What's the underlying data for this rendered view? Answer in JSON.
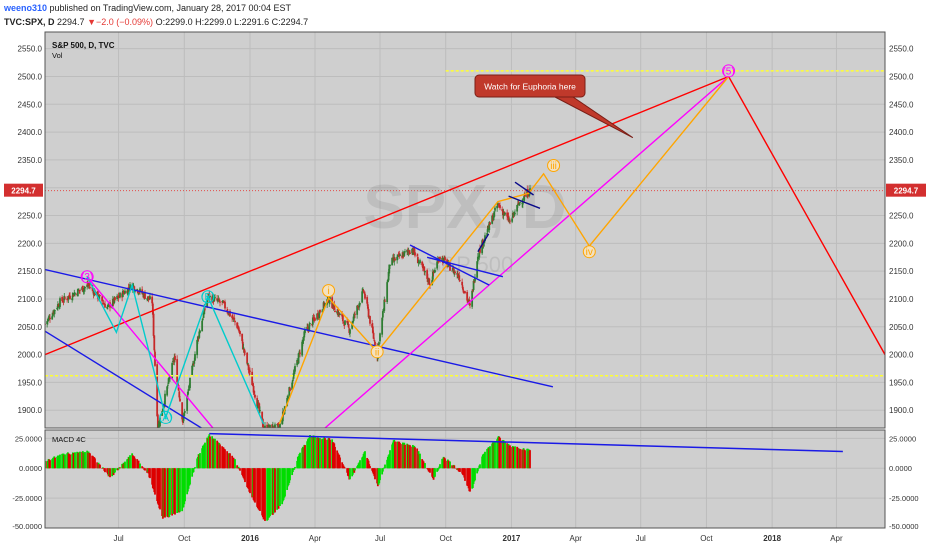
{
  "header": {
    "author": "weeno310",
    "published": " published on TradingView.com, January 28, 2017 00:04 EST",
    "symbol": "TVC:SPX, D",
    "last": "2294.7",
    "arrow": "▼",
    "change": "−2.0 (−0.09%)",
    "ohlc": "O:2299.0 H:2299.0 L:2291.6 C:2294.7"
  },
  "colors": {
    "background": "#ffffff",
    "pane": "#cfcfcf",
    "up": "#2e7d32",
    "down": "#c62828",
    "macd_pos": "#00dd00",
    "macd_neg": "#dd0000",
    "trend_red": "#ff0000",
    "trend_blue": "#1a1ae6",
    "magenta": "#ff00ff",
    "orange": "#ffa500",
    "cyan": "#00cccc",
    "yellow_dash": "#ffff33"
  },
  "chart_data": {
    "type": "candlestick",
    "title": "S&P 500, D, TVC",
    "subtitle": "Vol",
    "watermark": "SPX, D",
    "watermark_sub": "S&P 500",
    "y_axis": {
      "ylim": [
        1868,
        2580
      ],
      "ticks": [
        "2550.0",
        "2500.0",
        "2450.0",
        "2400.0",
        "2350.0",
        "2300.0",
        "2250.0",
        "2200.0",
        "2150.0",
        "2100.0",
        "2050.0",
        "2000.0",
        "1950.0",
        "1900.0"
      ],
      "grid": true
    },
    "x_axis": {
      "tick_labels": [
        "Jul",
        "Oct",
        "2016",
        "Apr",
        "Jul",
        "Oct",
        "2017",
        "Apr",
        "Jul",
        "Oct",
        "2018",
        "Apr"
      ],
      "tick_dates": [
        "2015-07-01",
        "2015-10-01",
        "2016-01-01",
        "2016-04-01",
        "2016-07-01",
        "2016-10-01",
        "2017-01-01",
        "2017-04-01",
        "2017-07-01",
        "2017-10-01",
        "2018-01-01",
        "2018-04-01"
      ],
      "range": [
        "2015-03-20",
        "2018-06-08"
      ]
    },
    "last_price_label": "2294.7",
    "last_price": 2294.7,
    "price_anchors": [
      [
        "2015-03-20",
        2055
      ],
      [
        "2015-04-10",
        2095
      ],
      [
        "2015-05-20",
        2125
      ],
      [
        "2015-06-15",
        2085
      ],
      [
        "2015-07-20",
        2125
      ],
      [
        "2015-08-17",
        2095
      ],
      [
        "2015-08-25",
        1868
      ],
      [
        "2015-09-17",
        1995
      ],
      [
        "2015-09-29",
        1880
      ],
      [
        "2015-10-20",
        2030
      ],
      [
        "2015-11-03",
        2105
      ],
      [
        "2015-11-25",
        2090
      ],
      [
        "2015-12-15",
        2050
      ],
      [
        "2016-01-20",
        1868
      ],
      [
        "2016-02-11",
        1868
      ],
      [
        "2016-03-18",
        2040
      ],
      [
        "2016-04-20",
        2100
      ],
      [
        "2016-05-19",
        2045
      ],
      [
        "2016-06-08",
        2115
      ],
      [
        "2016-06-27",
        2000
      ],
      [
        "2016-07-15",
        2165
      ],
      [
        "2016-08-15",
        2190
      ],
      [
        "2016-09-09",
        2128
      ],
      [
        "2016-09-22",
        2177
      ],
      [
        "2016-10-20",
        2140
      ],
      [
        "2016-11-04",
        2085
      ],
      [
        "2016-11-15",
        2180
      ],
      [
        "2016-12-13",
        2270
      ],
      [
        "2016-12-30",
        2238
      ],
      [
        "2017-01-13",
        2275
      ],
      [
        "2017-01-27",
        2294.7
      ]
    ],
    "macd": {
      "label": "MACD 4C",
      "ylim": [
        -50,
        32
      ],
      "ticks": [
        "25.0000",
        "0.0000",
        "-25.0000",
        "-50.0000"
      ],
      "anchors": [
        [
          "2015-03-20",
          6
        ],
        [
          "2015-04-15",
          12
        ],
        [
          "2015-05-20",
          14
        ],
        [
          "2015-06-20",
          -8
        ],
        [
          "2015-07-20",
          12
        ],
        [
          "2015-08-12",
          -5
        ],
        [
          "2015-09-01",
          -42
        ],
        [
          "2015-09-28",
          -36
        ],
        [
          "2015-10-20",
          10
        ],
        [
          "2015-11-05",
          28
        ],
        [
          "2015-11-20",
          20
        ],
        [
          "2015-12-10",
          8
        ],
        [
          "2016-01-01",
          -20
        ],
        [
          "2016-01-22",
          -45
        ],
        [
          "2016-02-15",
          -30
        ],
        [
          "2016-03-10",
          12
        ],
        [
          "2016-03-25",
          27
        ],
        [
          "2016-04-25",
          24
        ],
        [
          "2016-05-20",
          -10
        ],
        [
          "2016-06-10",
          14
        ],
        [
          "2016-06-28",
          -15
        ],
        [
          "2016-07-20",
          23
        ],
        [
          "2016-08-20",
          18
        ],
        [
          "2016-09-14",
          -10
        ],
        [
          "2016-09-28",
          10
        ],
        [
          "2016-10-25",
          -5
        ],
        [
          "2016-11-05",
          -22
        ],
        [
          "2016-11-22",
          12
        ],
        [
          "2016-12-14",
          26
        ],
        [
          "2016-12-30",
          19
        ],
        [
          "2017-01-27",
          15
        ]
      ],
      "trendline": [
        [
          "2015-11-05",
          29
        ],
        [
          "2018-04-10",
          14
        ]
      ]
    },
    "annotations": {
      "callout": "Watch for Euphoria here",
      "wave_labels": [
        {
          "text": "(3)",
          "date": "2015-05-18",
          "price": 2140,
          "color": "magenta"
        },
        {
          "text": "(A)",
          "date": "2015-09-05",
          "price": 1887,
          "color": "cyan"
        },
        {
          "text": "(B)",
          "date": "2015-11-03",
          "price": 2104,
          "color": "cyan"
        },
        {
          "text": "i",
          "date": "2016-04-20",
          "price": 2115,
          "color": "orange"
        },
        {
          "text": "ii",
          "date": "2016-06-27",
          "price": 2005,
          "color": "orange"
        },
        {
          "text": "iii",
          "date": "2017-03-01",
          "price": 2340,
          "color": "orange"
        },
        {
          "text": "iv",
          "date": "2017-04-20",
          "price": 2185,
          "color": "orange"
        },
        {
          "text": "(5)",
          "date": "2017-11-01",
          "price": 2510,
          "color": "magenta"
        }
      ],
      "lines": [
        {
          "color": "red",
          "pts": [
            [
              "2015-03-20",
              2000
            ],
            [
              "2017-11-01",
              2500
            ]
          ]
        },
        {
          "color": "red",
          "pts": [
            [
              "2017-11-01",
              2500
            ],
            [
              "2018-06-08",
              2000
            ]
          ]
        },
        {
          "color": "blue",
          "pts": [
            [
              "2015-03-20",
              2153
            ],
            [
              "2017-02-28",
              1942
            ]
          ]
        },
        {
          "color": "blue",
          "pts": [
            [
              "2015-03-20",
              2042
            ],
            [
              "2015-10-25",
              1868
            ]
          ]
        },
        {
          "color": "magenta",
          "pts": [
            [
              "2015-05-18",
              2140
            ],
            [
              "2015-11-10",
              1868
            ]
          ]
        },
        {
          "color": "magenta",
          "pts": [
            [
              "2016-04-15",
              1868
            ],
            [
              "2017-11-01",
              2500
            ]
          ]
        },
        {
          "color": "orange",
          "pts": [
            [
              "2016-02-11",
              1875
            ],
            [
              "2016-04-20",
              2102
            ],
            [
              "2016-06-27",
              2005
            ],
            [
              "2016-12-13",
              2275
            ],
            [
              "2017-01-25",
              2290
            ],
            [
              "2017-02-15",
              2325
            ],
            [
              "2017-04-20",
              2195
            ],
            [
              "2017-11-01",
              2500
            ]
          ]
        },
        {
          "color": "cyan",
          "pts": [
            [
              "2015-05-18",
              2140
            ],
            [
              "2015-06-28",
              2040
            ],
            [
              "2015-07-20",
              2125
            ],
            [
              "2015-09-05",
              1887
            ],
            [
              "2015-11-03",
              2104
            ],
            [
              "2016-01-20",
              1875
            ]
          ]
        },
        {
          "color": "blue",
          "pts": [
            [
              "2016-08-12",
              2197
            ],
            [
              "2016-12-01",
              2125
            ]
          ]
        },
        {
          "color": "blue",
          "pts": [
            [
              "2016-09-05",
              2175
            ],
            [
              "2016-12-20",
              2140
            ]
          ]
        },
        {
          "color": "navy",
          "pts": [
            [
              "2016-11-15",
              2185
            ],
            [
              "2016-11-30",
              2217
            ]
          ]
        },
        {
          "color": "navy",
          "pts": [
            [
              "2016-12-28",
              2285
            ],
            [
              "2017-02-10",
              2263
            ]
          ]
        },
        {
          "color": "navy",
          "pts": [
            [
              "2017-01-06",
              2310
            ],
            [
              "2017-02-01",
              2287
            ]
          ]
        }
      ],
      "yellow_levels": [
        2510,
        1962
      ]
    }
  }
}
